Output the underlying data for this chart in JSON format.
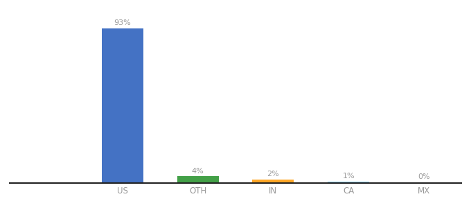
{
  "categories": [
    "US",
    "OTH",
    "IN",
    "CA",
    "MX"
  ],
  "values": [
    93,
    4,
    2,
    1,
    0.3
  ],
  "labels": [
    "93%",
    "4%",
    "2%",
    "1%",
    "0%"
  ],
  "bar_colors": [
    "#4472C4",
    "#43A047",
    "#FFA726",
    "#81D4FA",
    "#81D4FA"
  ],
  "ylim": [
    0,
    100
  ],
  "background_color": "#ffffff",
  "label_color": "#999999",
  "label_fontsize": 8,
  "tick_fontsize": 8.5,
  "bar_width": 0.55
}
